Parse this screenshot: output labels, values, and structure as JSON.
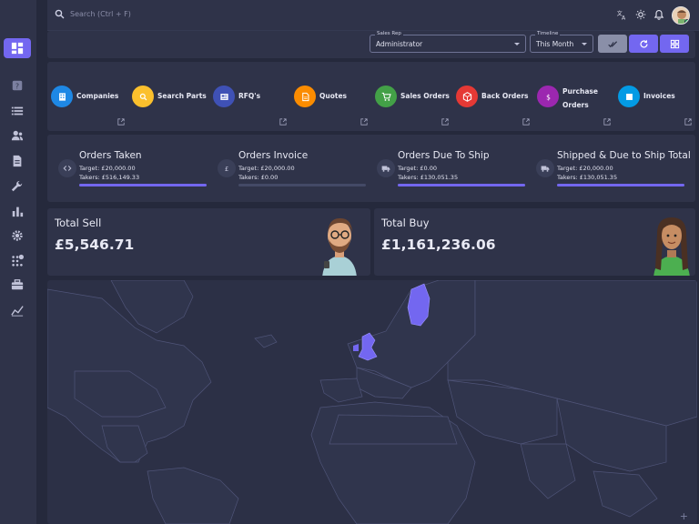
{
  "search": {
    "placeholder": "Search (Ctrl + F)"
  },
  "topbar_icons": [
    "translate-icon",
    "sun-icon",
    "bell-icon"
  ],
  "sidebar": {
    "items": [
      {
        "icon": "dashboard-icon",
        "active": true
      },
      {
        "icon": "help-box-icon"
      },
      {
        "icon": "list-icon"
      },
      {
        "icon": "users-icon"
      },
      {
        "icon": "document-icon"
      },
      {
        "icon": "wrench-icon"
      },
      {
        "icon": "bar-chart-icon"
      },
      {
        "icon": "gear-icon"
      },
      {
        "icon": "apps-icon"
      },
      {
        "icon": "briefcase-icon"
      },
      {
        "icon": "line-chart-icon"
      }
    ]
  },
  "filters": {
    "sales_rep": {
      "label": "Sales Rep",
      "value": "Administrator"
    },
    "timeline": {
      "label": "Timeline",
      "value": "This Month"
    }
  },
  "modules": [
    {
      "label": "Companies",
      "icon": "building-icon",
      "color": "#1e88e5"
    },
    {
      "label": "Search Parts",
      "icon": "search-icon",
      "color": "#fbc02d"
    },
    {
      "label": "RFQ's",
      "icon": "newspaper-icon",
      "color": "#3f51b5"
    },
    {
      "label": "Quotes",
      "icon": "document-icon",
      "color": "#fb8c00"
    },
    {
      "label": "Sales Orders",
      "icon": "cart-icon",
      "color": "#43a047"
    },
    {
      "label": "Back Orders",
      "icon": "box-icon",
      "color": "#e53935"
    },
    {
      "label": "Purchase Orders",
      "icon": "dollar-icon",
      "color": "#9c27b0"
    },
    {
      "label": "Invoices",
      "icon": "invoice-icon",
      "color": "#039be5"
    }
  ],
  "stats": [
    {
      "title": "Orders Taken",
      "icon": "code-icon",
      "target": "Target: £20,000.00",
      "takers": "Takers: £516,149.33",
      "progress": 1.0
    },
    {
      "title": "Orders Invoice",
      "icon": "pound-icon",
      "target": "Target: £20,000.00",
      "takers": "Takers: £0.00",
      "progress": 0.0
    },
    {
      "title": "Orders Due To Ship",
      "icon": "truck-icon",
      "target": "Target: £0.00",
      "takers": "Takers: £130,051.35",
      "progress": 1.0
    },
    {
      "title": "Shipped & Due to Ship Total",
      "icon": "truck-icon",
      "target": "Target: £20,000.00",
      "takers": "Takers: £130,051.35",
      "progress": 1.0
    }
  ],
  "totals": {
    "sell": {
      "label": "Total Sell",
      "value": "£5,546.71"
    },
    "buy": {
      "label": "Total Buy",
      "value": "£1,161,236.06"
    }
  },
  "map": {
    "highlight_color": "#7367f0"
  },
  "colors": {
    "accent": "#7367f0",
    "neutral_button": "#8a8fa8"
  }
}
